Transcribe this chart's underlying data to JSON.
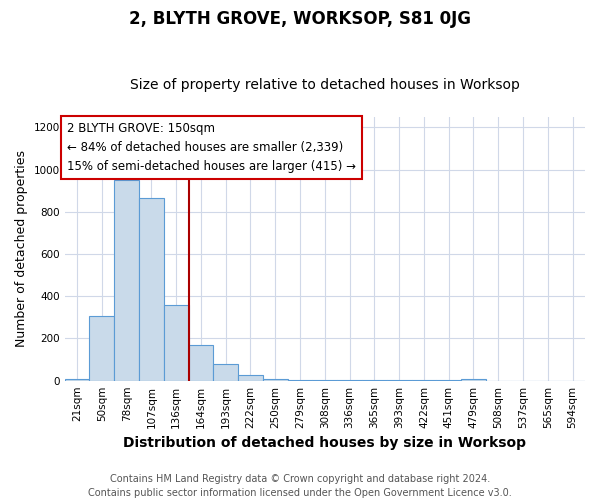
{
  "title": "2, BLYTH GROVE, WORKSOP, S81 0JG",
  "subtitle": "Size of property relative to detached houses in Worksop",
  "xlabel": "Distribution of detached houses by size in Worksop",
  "ylabel": "Number of detached properties",
  "categories": [
    "21sqm",
    "50sqm",
    "78sqm",
    "107sqm",
    "136sqm",
    "164sqm",
    "193sqm",
    "222sqm",
    "250sqm",
    "279sqm",
    "308sqm",
    "336sqm",
    "365sqm",
    "393sqm",
    "422sqm",
    "451sqm",
    "479sqm",
    "508sqm",
    "537sqm",
    "565sqm",
    "594sqm"
  ],
  "values": [
    10,
    305,
    950,
    865,
    360,
    170,
    80,
    28,
    8,
    4,
    4,
    2,
    2,
    2,
    1,
    1,
    8,
    0,
    0,
    0,
    0
  ],
  "bar_color": "#c9daea",
  "bar_edge_color": "#5b9bd5",
  "ylim": [
    0,
    1250
  ],
  "yticks": [
    0,
    200,
    400,
    600,
    800,
    1000,
    1200
  ],
  "property_label": "2 BLYTH GROVE: 150sqm",
  "annotation_line1": "← 84% of detached houses are smaller (2,339)",
  "annotation_line2": "15% of semi-detached houses are larger (415) →",
  "red_line_x": 4.5,
  "footer_line1": "Contains HM Land Registry data © Crown copyright and database right 2024.",
  "footer_line2": "Contains public sector information licensed under the Open Government Licence v3.0.",
  "background_color": "#ffffff",
  "plot_bg_color": "#ffffff",
  "title_fontsize": 12,
  "subtitle_fontsize": 10,
  "xlabel_fontsize": 10,
  "ylabel_fontsize": 9,
  "tick_fontsize": 7.5,
  "footer_fontsize": 7,
  "annotation_fontsize": 8.5,
  "grid_color": "#d0d8e8"
}
